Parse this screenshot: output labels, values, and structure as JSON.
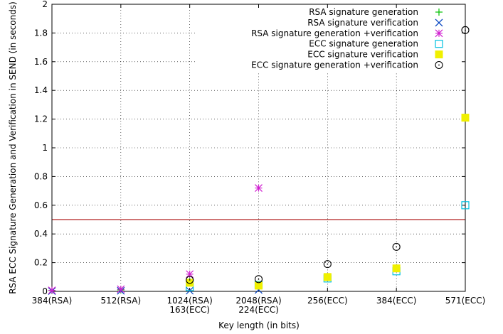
{
  "chart_data": {
    "type": "scatter",
    "title": "",
    "xlabel": "Key length (in bits)",
    "ylabel": "RSA  ECC Signature Generation and Verification in SEND (in seconds)",
    "ylim": [
      0,
      2
    ],
    "yticks": [
      "0",
      "0.2",
      "0.4",
      "0.6",
      "0.8",
      "1",
      "1.2",
      "1.4",
      "1.6",
      "1.8",
      "2"
    ],
    "categories": [
      [
        "384(RSA)"
      ],
      [
        "512(RSA)"
      ],
      [
        "1024(RSA)",
        "163(ECC)"
      ],
      [
        "2048(RSA)",
        "224(ECC)"
      ],
      [
        "256(ECC)"
      ],
      [
        "384(ECC)"
      ],
      [
        "571(ECC)"
      ]
    ],
    "grid": true,
    "legend_position": "top-right",
    "reference_line": {
      "y": 0.5,
      "color": "#b22222"
    },
    "series": [
      {
        "name": "RSA signature generation",
        "marker": "plus",
        "color": "#00c000",
        "values": [
          0.005,
          0.01,
          0.07,
          0.03,
          null,
          null,
          null
        ]
      },
      {
        "name": "RSA signature verification",
        "marker": "cross",
        "color": "#0040c0",
        "values": [
          0.002,
          0.004,
          0.005,
          0.01,
          null,
          null,
          null
        ]
      },
      {
        "name": "RSA signature generation +verification",
        "marker": "asterisk",
        "color": "#d020d0",
        "values": [
          0.007,
          0.015,
          0.12,
          0.72,
          null,
          null,
          null
        ]
      },
      {
        "name": "ECC signature generation",
        "marker": "open-square",
        "color": "#00c0e0",
        "values": [
          null,
          null,
          0.03,
          0.045,
          0.09,
          0.14,
          0.6
        ]
      },
      {
        "name": "ECC signature verification",
        "marker": "filled-square",
        "color": "#f0f000",
        "values": [
          null,
          null,
          0.06,
          0.04,
          0.1,
          0.16,
          1.21
        ]
      },
      {
        "name": "ECC signature generation +verification",
        "marker": "circle-dot",
        "color": "#000000",
        "values": [
          null,
          null,
          0.08,
          0.085,
          0.19,
          0.31,
          1.82
        ]
      }
    ]
  }
}
